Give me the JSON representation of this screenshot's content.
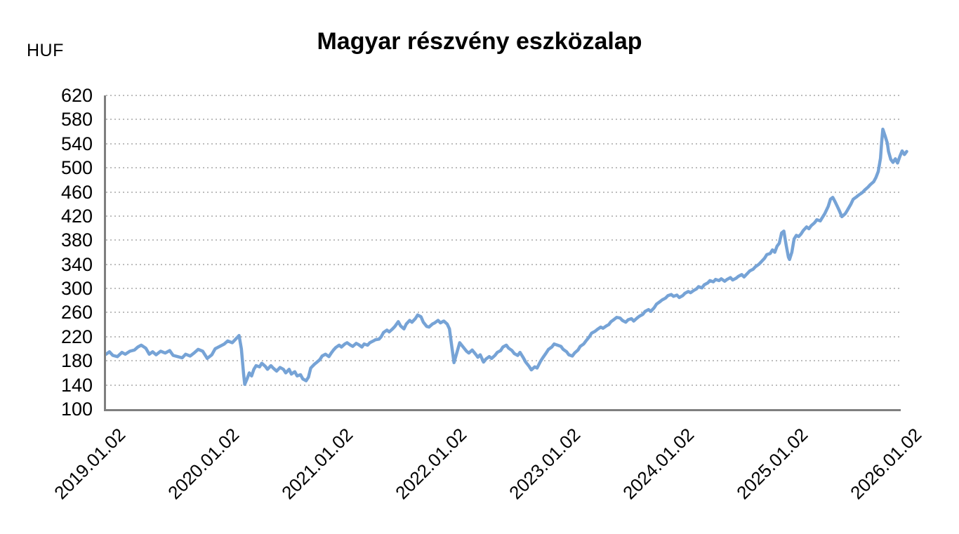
{
  "header": {
    "unit_label": "HUF",
    "title": "Magyar részvény eszközalap"
  },
  "colors": {
    "line": "#76A3D6",
    "grid": "#BDBDBD",
    "axis": "#7F7F7F",
    "text": "#000000",
    "background": "#FFFFFF"
  },
  "chart_data": {
    "type": "line",
    "title": "Magyar részvény eszközalap",
    "ylabel": "HUF",
    "xlabel": "",
    "legend_position": "none",
    "grid": "horizontal-dotted",
    "ylim": [
      100,
      620
    ],
    "y_ticks": [
      620,
      580,
      540,
      500,
      460,
      420,
      380,
      340,
      300,
      260,
      220,
      180,
      140,
      100
    ],
    "xlim": [
      2019.0,
      2026.04
    ],
    "x_tick_years": [
      2019,
      2020,
      2021,
      2022,
      2023,
      2024,
      2025,
      2026
    ],
    "x_tick_labels": [
      "2019.01.02",
      "2020.01.02",
      "2021.01.02",
      "2022.01.02",
      "2023.01.02",
      "2024.01.02",
      "2025.01.02",
      "2026.01.02"
    ],
    "series": [
      {
        "name": "Magyar részvény eszközalap",
        "color": "#76A3D6",
        "points": [
          [
            2019.0,
            191
          ],
          [
            2019.03,
            195
          ],
          [
            2019.06,
            189
          ],
          [
            2019.1,
            187
          ],
          [
            2019.14,
            194
          ],
          [
            2019.17,
            191
          ],
          [
            2019.21,
            196
          ],
          [
            2019.25,
            198
          ],
          [
            2019.28,
            203
          ],
          [
            2019.31,
            206
          ],
          [
            2019.35,
            201
          ],
          [
            2019.38,
            191
          ],
          [
            2019.41,
            195
          ],
          [
            2019.44,
            190
          ],
          [
            2019.48,
            196
          ],
          [
            2019.52,
            193
          ],
          [
            2019.56,
            197
          ],
          [
            2019.59,
            189
          ],
          [
            2019.63,
            187
          ],
          [
            2019.67,
            185
          ],
          [
            2019.7,
            191
          ],
          [
            2019.74,
            188
          ],
          [
            2019.78,
            194
          ],
          [
            2019.81,
            199
          ],
          [
            2019.85,
            196
          ],
          [
            2019.89,
            184
          ],
          [
            2019.93,
            190
          ],
          [
            2019.96,
            200
          ],
          [
            2020.0,
            204
          ],
          [
            2020.04,
            208
          ],
          [
            2020.07,
            213
          ],
          [
            2020.11,
            210
          ],
          [
            2020.15,
            218
          ],
          [
            2020.17,
            222
          ],
          [
            2020.19,
            200
          ],
          [
            2020.21,
            158
          ],
          [
            2020.22,
            141
          ],
          [
            2020.24,
            150
          ],
          [
            2020.26,
            160
          ],
          [
            2020.28,
            155
          ],
          [
            2020.3,
            166
          ],
          [
            2020.32,
            172
          ],
          [
            2020.35,
            170
          ],
          [
            2020.37,
            176
          ],
          [
            2020.4,
            171
          ],
          [
            2020.42,
            166
          ],
          [
            2020.45,
            172
          ],
          [
            2020.47,
            168
          ],
          [
            2020.5,
            163
          ],
          [
            2020.53,
            169
          ],
          [
            2020.56,
            166
          ],
          [
            2020.58,
            160
          ],
          [
            2020.61,
            166
          ],
          [
            2020.63,
            158
          ],
          [
            2020.66,
            162
          ],
          [
            2020.68,
            155
          ],
          [
            2020.71,
            157
          ],
          [
            2020.73,
            150
          ],
          [
            2020.76,
            147
          ],
          [
            2020.78,
            153
          ],
          [
            2020.8,
            168
          ],
          [
            2020.83,
            174
          ],
          [
            2020.85,
            177
          ],
          [
            2020.88,
            182
          ],
          [
            2020.9,
            188
          ],
          [
            2020.93,
            191
          ],
          [
            2020.96,
            187
          ],
          [
            2020.98,
            193
          ],
          [
            2021.0,
            198
          ],
          [
            2021.02,
            202
          ],
          [
            2021.05,
            206
          ],
          [
            2021.07,
            203
          ],
          [
            2021.1,
            208
          ],
          [
            2021.12,
            210
          ],
          [
            2021.15,
            206
          ],
          [
            2021.17,
            204
          ],
          [
            2021.2,
            209
          ],
          [
            2021.22,
            207
          ],
          [
            2021.25,
            203
          ],
          [
            2021.27,
            208
          ],
          [
            2021.3,
            206
          ],
          [
            2021.32,
            210
          ],
          [
            2021.35,
            213
          ],
          [
            2021.37,
            215
          ],
          [
            2021.4,
            216
          ],
          [
            2021.42,
            220
          ],
          [
            2021.44,
            227
          ],
          [
            2021.47,
            231
          ],
          [
            2021.49,
            228
          ],
          [
            2021.52,
            233
          ],
          [
            2021.54,
            237
          ],
          [
            2021.57,
            245
          ],
          [
            2021.59,
            238
          ],
          [
            2021.62,
            233
          ],
          [
            2021.64,
            241
          ],
          [
            2021.67,
            247
          ],
          [
            2021.69,
            244
          ],
          [
            2021.72,
            250
          ],
          [
            2021.74,
            256
          ],
          [
            2021.77,
            253
          ],
          [
            2021.79,
            244
          ],
          [
            2021.82,
            237
          ],
          [
            2021.84,
            236
          ],
          [
            2021.87,
            241
          ],
          [
            2021.89,
            243
          ],
          [
            2021.92,
            247
          ],
          [
            2021.94,
            243
          ],
          [
            2021.97,
            246
          ],
          [
            2022.0,
            241
          ],
          [
            2022.02,
            233
          ],
          [
            2022.04,
            204
          ],
          [
            2022.06,
            177
          ],
          [
            2022.09,
            197
          ],
          [
            2022.11,
            210
          ],
          [
            2022.14,
            203
          ],
          [
            2022.17,
            196
          ],
          [
            2022.19,
            193
          ],
          [
            2022.22,
            198
          ],
          [
            2022.25,
            191
          ],
          [
            2022.27,
            186
          ],
          [
            2022.29,
            190
          ],
          [
            2022.32,
            178
          ],
          [
            2022.34,
            183
          ],
          [
            2022.37,
            187
          ],
          [
            2022.39,
            184
          ],
          [
            2022.42,
            189
          ],
          [
            2022.44,
            194
          ],
          [
            2022.47,
            197
          ],
          [
            2022.49,
            203
          ],
          [
            2022.52,
            206
          ],
          [
            2022.54,
            201
          ],
          [
            2022.57,
            197
          ],
          [
            2022.59,
            192
          ],
          [
            2022.62,
            189
          ],
          [
            2022.64,
            194
          ],
          [
            2022.67,
            185
          ],
          [
            2022.69,
            178
          ],
          [
            2022.72,
            171
          ],
          [
            2022.74,
            165
          ],
          [
            2022.77,
            170
          ],
          [
            2022.79,
            168
          ],
          [
            2022.82,
            179
          ],
          [
            2022.84,
            185
          ],
          [
            2022.87,
            193
          ],
          [
            2022.89,
            199
          ],
          [
            2022.92,
            203
          ],
          [
            2022.94,
            208
          ],
          [
            2022.97,
            206
          ],
          [
            2023.0,
            204
          ],
          [
            2023.02,
            199
          ],
          [
            2023.05,
            195
          ],
          [
            2023.07,
            190
          ],
          [
            2023.1,
            188
          ],
          [
            2023.12,
            193
          ],
          [
            2023.15,
            198
          ],
          [
            2023.17,
            204
          ],
          [
            2023.2,
            208
          ],
          [
            2023.22,
            213
          ],
          [
            2023.25,
            220
          ],
          [
            2023.27,
            226
          ],
          [
            2023.3,
            229
          ],
          [
            2023.32,
            232
          ],
          [
            2023.35,
            236
          ],
          [
            2023.37,
            234
          ],
          [
            2023.4,
            238
          ],
          [
            2023.42,
            240
          ],
          [
            2023.44,
            245
          ],
          [
            2023.47,
            249
          ],
          [
            2023.49,
            252
          ],
          [
            2023.52,
            251
          ],
          [
            2023.54,
            247
          ],
          [
            2023.57,
            244
          ],
          [
            2023.59,
            248
          ],
          [
            2023.62,
            250
          ],
          [
            2023.64,
            246
          ],
          [
            2023.67,
            251
          ],
          [
            2023.69,
            254
          ],
          [
            2023.72,
            257
          ],
          [
            2023.74,
            262
          ],
          [
            2023.77,
            265
          ],
          [
            2023.79,
            262
          ],
          [
            2023.82,
            268
          ],
          [
            2023.84,
            274
          ],
          [
            2023.87,
            278
          ],
          [
            2023.89,
            281
          ],
          [
            2023.92,
            284
          ],
          [
            2023.94,
            288
          ],
          [
            2023.97,
            290
          ],
          [
            2023.99,
            287
          ],
          [
            2024.02,
            289
          ],
          [
            2024.04,
            285
          ],
          [
            2024.07,
            288
          ],
          [
            2024.09,
            292
          ],
          [
            2024.12,
            295
          ],
          [
            2024.14,
            293
          ],
          [
            2024.17,
            297
          ],
          [
            2024.19,
            299
          ],
          [
            2024.21,
            303
          ],
          [
            2024.24,
            301
          ],
          [
            2024.26,
            306
          ],
          [
            2024.29,
            309
          ],
          [
            2024.31,
            313
          ],
          [
            2024.34,
            311
          ],
          [
            2024.36,
            315
          ],
          [
            2024.39,
            313
          ],
          [
            2024.41,
            316
          ],
          [
            2024.44,
            312
          ],
          [
            2024.46,
            315
          ],
          [
            2024.49,
            318
          ],
          [
            2024.51,
            314
          ],
          [
            2024.54,
            317
          ],
          [
            2024.56,
            320
          ],
          [
            2024.59,
            323
          ],
          [
            2024.61,
            319
          ],
          [
            2024.64,
            325
          ],
          [
            2024.66,
            329
          ],
          [
            2024.69,
            332
          ],
          [
            2024.71,
            336
          ],
          [
            2024.74,
            340
          ],
          [
            2024.76,
            344
          ],
          [
            2024.79,
            350
          ],
          [
            2024.81,
            356
          ],
          [
            2024.84,
            358
          ],
          [
            2024.86,
            364
          ],
          [
            2024.88,
            360
          ],
          [
            2024.9,
            370
          ],
          [
            2024.92,
            375
          ],
          [
            2024.94,
            392
          ],
          [
            2024.96,
            395
          ],
          [
            2024.98,
            372
          ],
          [
            2025.0,
            352
          ],
          [
            2025.01,
            348
          ],
          [
            2025.03,
            360
          ],
          [
            2025.05,
            382
          ],
          [
            2025.07,
            388
          ],
          [
            2025.09,
            386
          ],
          [
            2025.11,
            390
          ],
          [
            2025.13,
            396
          ],
          [
            2025.16,
            402
          ],
          [
            2025.18,
            399
          ],
          [
            2025.2,
            404
          ],
          [
            2025.23,
            409
          ],
          [
            2025.25,
            414
          ],
          [
            2025.28,
            412
          ],
          [
            2025.3,
            418
          ],
          [
            2025.32,
            424
          ],
          [
            2025.35,
            436
          ],
          [
            2025.37,
            448
          ],
          [
            2025.39,
            451
          ],
          [
            2025.41,
            444
          ],
          [
            2025.43,
            436
          ],
          [
            2025.45,
            428
          ],
          [
            2025.47,
            419
          ],
          [
            2025.5,
            424
          ],
          [
            2025.52,
            430
          ],
          [
            2025.55,
            440
          ],
          [
            2025.57,
            448
          ],
          [
            2025.6,
            452
          ],
          [
            2025.62,
            455
          ],
          [
            2025.65,
            459
          ],
          [
            2025.67,
            463
          ],
          [
            2025.7,
            468
          ],
          [
            2025.72,
            472
          ],
          [
            2025.75,
            477
          ],
          [
            2025.77,
            484
          ],
          [
            2025.79,
            494
          ],
          [
            2025.81,
            516
          ],
          [
            2025.82,
            542
          ],
          [
            2025.83,
            564
          ],
          [
            2025.85,
            553
          ],
          [
            2025.87,
            541
          ],
          [
            2025.88,
            527
          ],
          [
            2025.9,
            514
          ],
          [
            2025.92,
            509
          ],
          [
            2025.94,
            515
          ],
          [
            2025.96,
            508
          ],
          [
            2025.98,
            519
          ],
          [
            2026.0,
            528
          ],
          [
            2026.02,
            522
          ],
          [
            2026.04,
            527
          ]
        ]
      }
    ]
  }
}
